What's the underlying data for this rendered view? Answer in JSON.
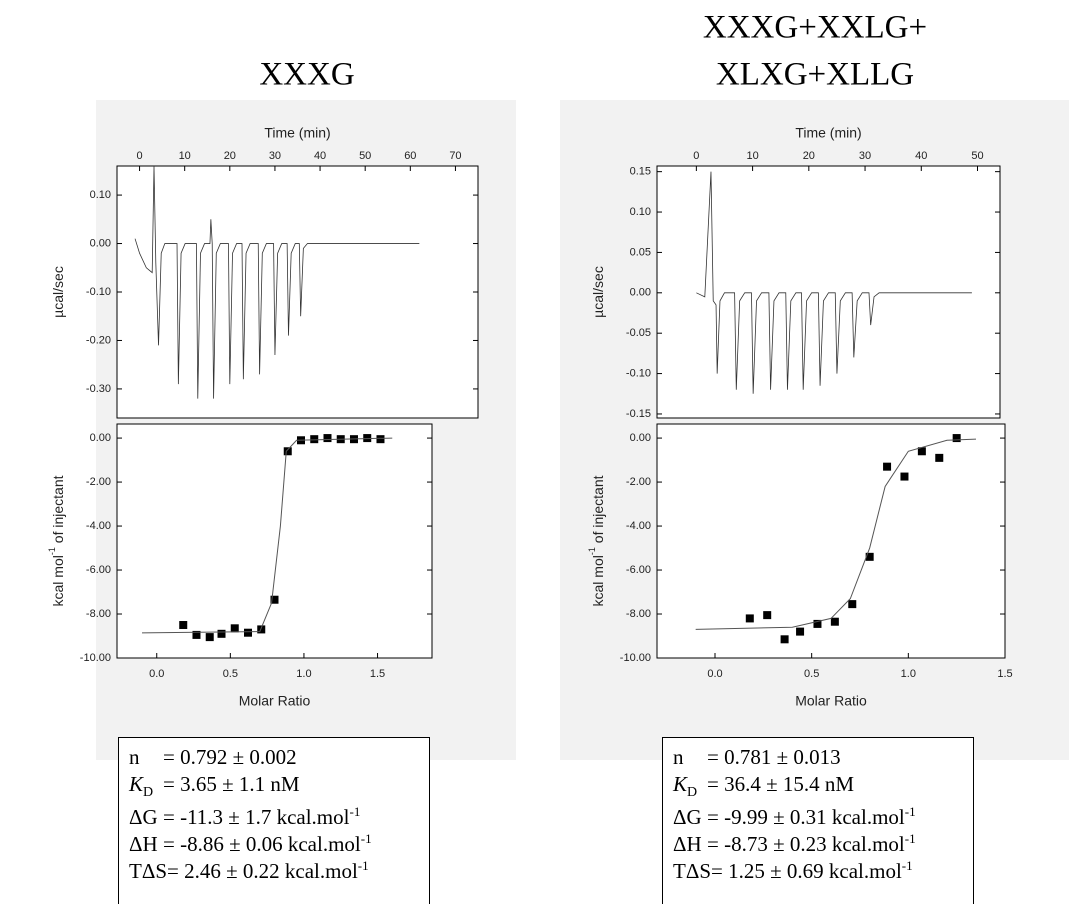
{
  "chart_data": [
    {
      "type": "line",
      "xlabel": "Time (min)",
      "ylabel": [
        "µcal/sec"
      ],
      "xaxis": "top",
      "xlim": [
        -5,
        75
      ],
      "xticks": [
        0,
        10,
        20,
        30,
        40,
        50,
        60,
        70
      ],
      "ylim": [
        -0.36,
        0.16
      ],
      "yticks": [
        {
          "value": 0.1,
          "label": "0.10"
        },
        {
          "value": 0,
          "label": "0.00"
        },
        {
          "value": -0.1,
          "label": "-0.10"
        },
        {
          "value": -0.2,
          "label": "-0.20"
        },
        {
          "value": -0.3,
          "label": "-0.30"
        }
      ],
      "series": [
        {
          "kind": "line",
          "color": "#333333",
          "x": [
            -1,
            0,
            1.5,
            2.8,
            3.2,
            3.6,
            4.2,
            4.8,
            5.6,
            8.3,
            8.6,
            9.2,
            10.1,
            12.6,
            12.9,
            13.5,
            14.4,
            15.6,
            15.8,
            16.1,
            16.4,
            17,
            17.9,
            19.7,
            20,
            20.6,
            21.5,
            22.7,
            23,
            23.6,
            24.5,
            26.3,
            26.6,
            27.2,
            28.1,
            29.7,
            30,
            30.6,
            31.5,
            32.7,
            33,
            33.6,
            34.5,
            35.4,
            35.7,
            36.3,
            37.2,
            62
          ],
          "values": [
            0.01,
            -0.02,
            -0.05,
            -0.06,
            0.16,
            -0.04,
            -0.21,
            -0.02,
            0,
            0,
            -0.29,
            -0.02,
            0,
            0,
            -0.32,
            -0.02,
            0,
            0,
            0.05,
            0,
            -0.32,
            -0.02,
            0,
            0,
            -0.29,
            -0.02,
            0,
            0,
            -0.28,
            -0.02,
            0,
            0,
            -0.27,
            -0.02,
            0,
            0,
            -0.23,
            -0.02,
            0,
            0,
            -0.19,
            -0.02,
            0,
            0,
            -0.15,
            -0.01,
            0,
            0
          ]
        }
      ]
    },
    {
      "type": "scatter",
      "xlabel": "Molar Ratio",
      "ylabel": [
        "kcal mol",
        "-1",
        " of injectant"
      ],
      "xaxis": "bottom",
      "xlim": [
        -0.27,
        1.87
      ],
      "xticks": [
        {
          "value": 0,
          "label": "0.0"
        },
        0.5,
        {
          "value": 1,
          "label": "1.0"
        },
        1.5
      ],
      "ylim": [
        -10,
        0.64
      ],
      "yticks": [
        {
          "value": 0,
          "label": "0.00"
        },
        {
          "value": -2,
          "label": "-2.00"
        },
        {
          "value": -4,
          "label": "-4.00"
        },
        {
          "value": -6,
          "label": "-6.00"
        },
        {
          "value": -8,
          "label": "-8.00"
        },
        {
          "value": -10,
          "label": "-10.00"
        }
      ],
      "series": [
        {
          "kind": "markers",
          "color": "#000000",
          "x": [
            0.18,
            0.27,
            0.36,
            0.44,
            0.53,
            0.62,
            0.71,
            0.8,
            0.89,
            0.98,
            1.07,
            1.16,
            1.25,
            1.34,
            1.43,
            1.52
          ],
          "values": [
            -8.5,
            -8.95,
            -9.05,
            -8.9,
            -8.65,
            -8.85,
            -8.7,
            -7.35,
            -0.6,
            -0.1,
            -0.05,
            0,
            -0.05,
            -0.05,
            0,
            -0.05
          ]
        },
        {
          "kind": "line",
          "color": "#555555",
          "x": [
            -0.1,
            0.7,
            0.78,
            0.84,
            0.88,
            0.95,
            1.6
          ],
          "values": [
            -8.86,
            -8.8,
            -7.5,
            -4,
            -0.6,
            -0.1,
            0
          ]
        }
      ]
    },
    {
      "type": "line",
      "xlabel": "Time (min)",
      "ylabel": [
        "µcal/sec"
      ],
      "xaxis": "top",
      "xlim": [
        -7,
        54
      ],
      "xticks": [
        0,
        10,
        20,
        30,
        40,
        50
      ],
      "ylim": [
        -0.155,
        0.157
      ],
      "yticks": [
        {
          "value": 0.15,
          "label": "0.15"
        },
        {
          "value": 0.1,
          "label": "0.10"
        },
        0.05,
        {
          "value": 0,
          "label": "0.00"
        },
        -0.05,
        {
          "value": -0.1,
          "label": "-0.10"
        },
        -0.15
      ],
      "series": [
        {
          "kind": "line",
          "color": "#333333",
          "x": [
            0,
            1.5,
            2.6,
            3,
            3.5,
            3.7,
            4.2,
            5,
            6.8,
            7.1,
            7.7,
            8.6,
            9.8,
            10.1,
            10.7,
            11.6,
            12.9,
            13.2,
            13.8,
            14.7,
            15.9,
            16.2,
            16.8,
            17.7,
            18.7,
            19,
            19.6,
            20.5,
            21.7,
            22,
            22.6,
            23.5,
            24.7,
            25,
            25.6,
            26.5,
            27.7,
            28,
            28.6,
            29.5,
            30.7,
            31,
            31.6,
            32.5,
            49
          ],
          "values": [
            0,
            -0.005,
            0.15,
            -0.01,
            -0.015,
            -0.1,
            -0.01,
            0,
            0,
            -0.12,
            -0.01,
            0,
            0,
            -0.125,
            -0.01,
            0,
            0,
            -0.12,
            -0.01,
            0,
            0,
            -0.12,
            -0.01,
            0,
            0,
            -0.12,
            -0.01,
            0,
            0,
            -0.115,
            -0.01,
            0,
            0,
            -0.1,
            -0.01,
            0,
            0,
            -0.08,
            -0.01,
            0,
            0,
            -0.04,
            -0.005,
            0,
            0
          ]
        }
      ]
    },
    {
      "type": "scatter",
      "xlabel": "Molar Ratio",
      "ylabel": [
        "kcal mol",
        "-1",
        " of injectant"
      ],
      "xaxis": "bottom",
      "xlim": [
        -0.3,
        1.5
      ],
      "xticks": [
        {
          "value": 0,
          "label": "0.0"
        },
        0.5,
        {
          "value": 1,
          "label": "1.0"
        },
        1.5
      ],
      "ylim": [
        -10,
        0.64
      ],
      "yticks": [
        {
          "value": 0,
          "label": "0.00"
        },
        {
          "value": -2,
          "label": "-2.00"
        },
        {
          "value": -4,
          "label": "-4.00"
        },
        {
          "value": -6,
          "label": "-6.00"
        },
        {
          "value": -8,
          "label": "-8.00"
        },
        {
          "value": -10,
          "label": "-10.00"
        }
      ],
      "series": [
        {
          "kind": "markers",
          "color": "#000000",
          "x": [
            0.18,
            0.27,
            0.36,
            0.44,
            0.53,
            0.62,
            0.71,
            0.8,
            0.89,
            0.98,
            1.07,
            1.16,
            1.25
          ],
          "values": [
            -8.2,
            -8.05,
            -9.15,
            -8.8,
            -8.45,
            -8.35,
            -7.55,
            -5.4,
            -1.3,
            -1.75,
            -0.6,
            -0.9,
            0
          ]
        },
        {
          "kind": "line",
          "color": "#555555",
          "x": [
            -0.1,
            0.4,
            0.6,
            0.7,
            0.8,
            0.88,
            1,
            1.2,
            1.35
          ],
          "values": [
            -8.7,
            -8.6,
            -8.2,
            -7.3,
            -5,
            -2.2,
            -0.6,
            -0.1,
            -0.05
          ]
        }
      ]
    }
  ],
  "panels": [
    {
      "title": [
        "XXXG"
      ],
      "params": [
        {
          "symbol": "n",
          "value": "= 0.792 ± 0.002"
        },
        {
          "symbol": "K",
          "sub": "D",
          "value": "= 3.65 ± 1.1 nM"
        },
        {
          "symbol": "ΔG",
          "value": "= -11.3 ± 1.7 kcal.mol",
          "sup": "-1"
        },
        {
          "symbol": "ΔH",
          "value": "= -8.86 ± 0.06 kcal.mol",
          "sup": "-1"
        },
        {
          "symbol": "TΔS",
          "value": "= 2.46 ± 0.22 kcal.mol",
          "sup": "-1"
        }
      ]
    },
    {
      "title": [
        "XXXG+XXLG+",
        "XLXG+XLLG"
      ],
      "params": [
        {
          "symbol": "n",
          "value": "= 0.781 ± 0.013"
        },
        {
          "symbol": "K",
          "sub": "D",
          "value": "= 36.4 ± 15.4 nM"
        },
        {
          "symbol": "ΔG",
          "value": "= -9.99 ± 0.31 kcal.mol",
          "sup": "-1"
        },
        {
          "symbol": "ΔH",
          "value": "= -8.73 ± 0.23 kcal.mol",
          "sup": "-1"
        },
        {
          "symbol": "TΔS",
          "value": "= 1.25 ± 0.69 kcal.mol",
          "sup": "-1"
        }
      ]
    }
  ]
}
